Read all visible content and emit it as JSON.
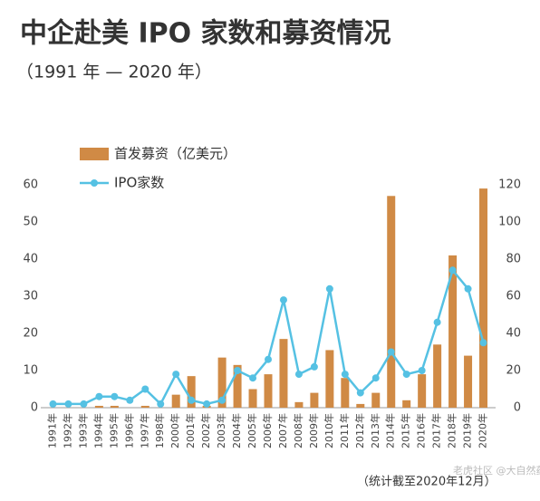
{
  "chart_data": {
    "type": "bar_line",
    "title": "中企赴美 IPO 家数和募资情况",
    "subtitle": "（1991 年 — 2020 年）",
    "note": "（统计截至2020年12月）",
    "watermark": "老虎社区 @大自然药业",
    "categories": [
      "1991年",
      "1992年",
      "1993年",
      "1994年",
      "1995年",
      "1996年",
      "1997年",
      "1998年",
      "2000年",
      "2001年",
      "2002年",
      "2003年",
      "2004年",
      "2005年",
      "2006年",
      "2007年",
      "2008年",
      "2009年",
      "2010年",
      "2011年",
      "2012年",
      "2013年",
      "2014年",
      "2015年",
      "2016年",
      "2017年",
      "2018年",
      "2019年",
      "2020年"
    ],
    "series": [
      {
        "name": "首发募资（亿美元）",
        "color": "#d08a45",
        "kind": "bar",
        "axis": "y",
        "values": [
          0,
          0,
          0,
          0.5,
          0.5,
          0,
          0.5,
          0,
          3.5,
          8.5,
          0.5,
          13.5,
          11.5,
          5,
          9,
          18.5,
          1.5,
          4,
          15.5,
          8,
          1,
          4,
          57,
          2,
          9,
          17,
          41,
          14,
          59
        ]
      },
      {
        "name": "IPO家数",
        "color": "#55c1e3",
        "kind": "line",
        "axis": "y2",
        "values": [
          2,
          2,
          2,
          6,
          6,
          4,
          10,
          2,
          18,
          4,
          2,
          4,
          20,
          16,
          26,
          58,
          18,
          22,
          64,
          18,
          8,
          16,
          30,
          18,
          20,
          46,
          74,
          64,
          35
        ]
      }
    ],
    "ylim": [
      0,
      60
    ],
    "yticks": [
      0,
      10,
      20,
      30,
      40,
      50,
      60
    ],
    "y2lim": [
      0,
      120
    ],
    "y2ticks": [
      0,
      20,
      40,
      60,
      80,
      100,
      120
    ]
  }
}
